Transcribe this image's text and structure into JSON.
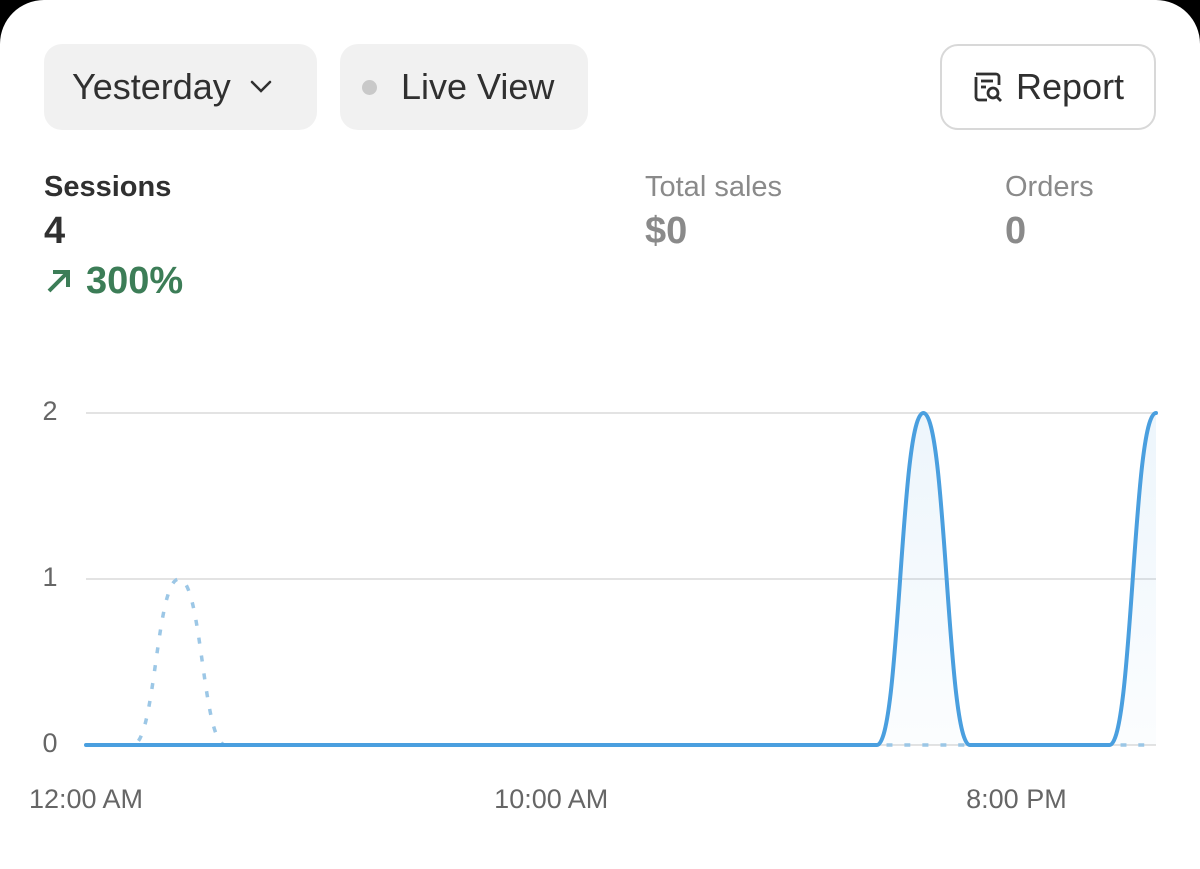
{
  "toolbar": {
    "date_range": "Yesterday",
    "live_view": "Live View",
    "report": "Report"
  },
  "metrics": [
    {
      "label": "Sessions",
      "value": "4",
      "change": "300%"
    },
    {
      "label": "Total sales",
      "value": "$0"
    },
    {
      "label": "Orders",
      "value": "0"
    }
  ],
  "chart_data": {
    "type": "line",
    "x": [
      0,
      1,
      2,
      3,
      4,
      5,
      6,
      7,
      8,
      9,
      10,
      11,
      12,
      13,
      14,
      15,
      16,
      17,
      18,
      19,
      20,
      21,
      22,
      23
    ],
    "xlim": [
      0,
      23
    ],
    "xticks": [
      {
        "value": 0,
        "label": "12:00 AM"
      },
      {
        "value": 10,
        "label": "10:00 AM"
      },
      {
        "value": 20,
        "label": "8:00 PM"
      }
    ],
    "ylim": [
      0,
      2
    ],
    "yticks": [
      0,
      1,
      2
    ],
    "grid": true,
    "series": [
      {
        "color": "#9cc7e6",
        "line_style": "dotted",
        "values": [
          0,
          0,
          1,
          0,
          0,
          0,
          0,
          0,
          0,
          0,
          0,
          0,
          0,
          0,
          0,
          0,
          0,
          0,
          0,
          0,
          0,
          0,
          0,
          0
        ]
      },
      {
        "color": "#4a9fdf",
        "line_style": "solid",
        "fill": true,
        "values": [
          0,
          0,
          0,
          0,
          0,
          0,
          0,
          0,
          0,
          0,
          0,
          0,
          0,
          0,
          0,
          0,
          0,
          0,
          2,
          0,
          0,
          0,
          0,
          2
        ]
      }
    ]
  }
}
